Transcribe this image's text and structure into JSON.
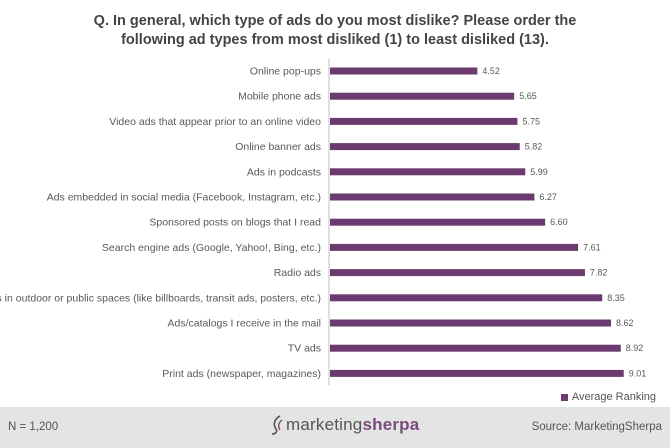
{
  "chart_data": {
    "type": "bar",
    "orientation": "horizontal",
    "title_line1": "Q. In general, which type of ads do you most dislike? Please order the",
    "title_line2": "following ad types from most disliked (1) to least disliked (13).",
    "categories": [
      "Online pop-ups",
      "Mobile phone ads",
      "Video ads that appear prior to an online video",
      "Online banner ads",
      "Ads in podcasts",
      "Ads embedded in social media (Facebook, Instagram, etc.)",
      "Sponsored posts on blogs that I read",
      "Search engine ads (Google, Yahoo!, Bing, etc.)",
      "Radio ads",
      "Ads in outdoor or public spaces (like billboards, transit ads, posters, etc.)",
      "Ads/catalogs I receive in the mail",
      "TV ads",
      "Print ads (newspaper, magazines)"
    ],
    "series": [
      {
        "name": "Average Ranking",
        "values": [
          4.52,
          5.65,
          5.75,
          5.82,
          5.99,
          6.27,
          6.6,
          7.61,
          7.82,
          8.35,
          8.62,
          8.92,
          9.01
        ],
        "labels": [
          "4.52",
          "5.65",
          "5.75",
          "5.82",
          "5.99",
          "6.27",
          "6.60",
          "7.61",
          "7.82",
          "8.35",
          "8.62",
          "8.92",
          "9.01"
        ]
      }
    ],
    "xlim": [
      0,
      10
    ],
    "grid": false,
    "legend": "bottom-right",
    "bar_color": "#6b3a6e",
    "axis_color": "#bfbfbf",
    "label_color": "#595959"
  },
  "footer": {
    "n_label": "N = 1,200",
    "brand_part1": "marketing",
    "brand_part2": "sherpa",
    "source_label": "Source: MarketingSherpa"
  }
}
